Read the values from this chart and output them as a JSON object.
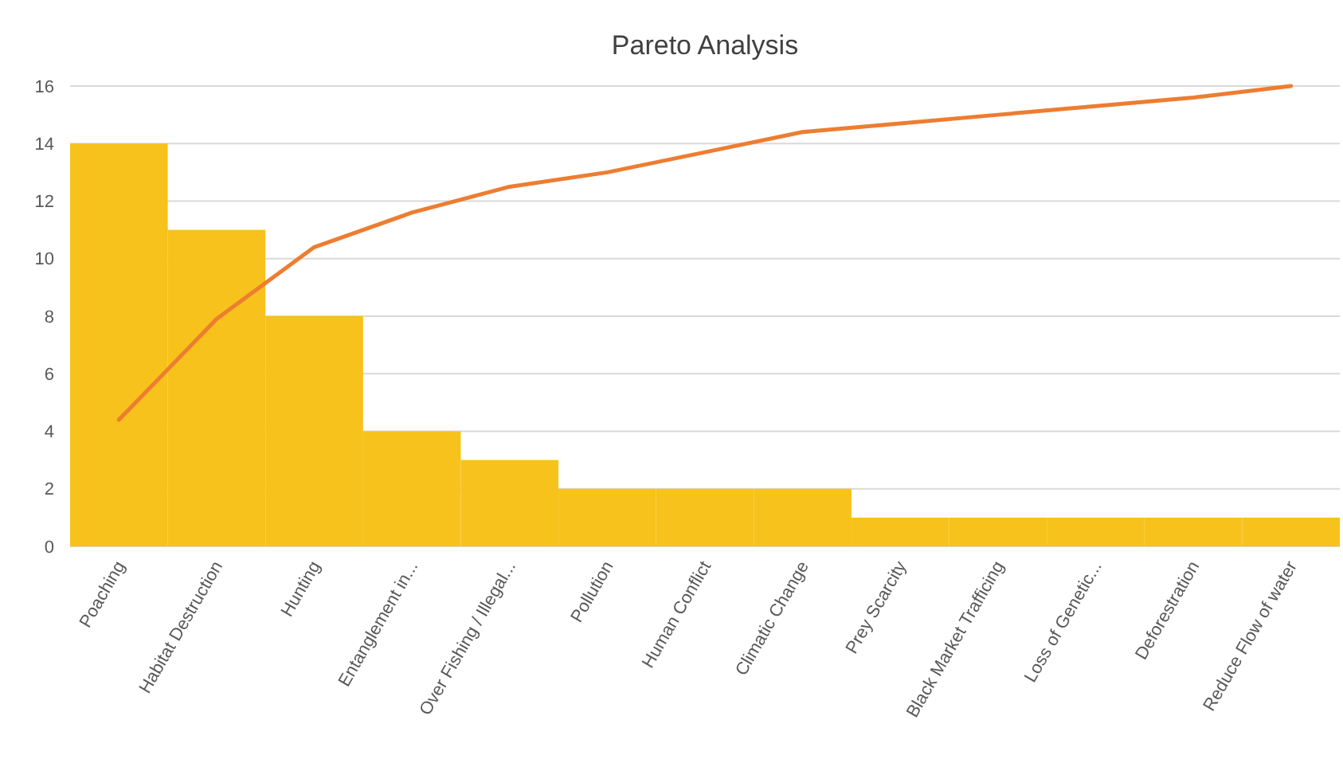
{
  "chart_data": {
    "type": "bar",
    "title": "Pareto Analysis",
    "categories": [
      "Poaching",
      "Habitat Destruction",
      "Hunting",
      "Entanglement in...",
      "Over Fishing / Illegal...",
      "Pollution",
      "Human Conflict",
      "Climatic Change",
      "Prey Scarcity",
      "Black Market Trafficing",
      "Loss of Genetic...",
      "Deforestration",
      "Reduce Flow of water"
    ],
    "series": [
      {
        "color": "#f7c21b",
        "values": [
          14,
          11,
          8,
          4,
          3,
          2,
          2,
          2,
          1,
          1,
          1,
          1,
          1
        ]
      },
      {
        "type": "line",
        "color": "#ed7d31",
        "values": [
          4.4,
          7.9,
          10.4,
          11.6,
          12.5,
          13.0,
          13.7,
          14.4,
          14.7,
          15.0,
          15.3,
          15.6,
          16.0
        ]
      }
    ],
    "ylim": [
      0,
      16
    ],
    "yticks": [
      0,
      2,
      4,
      6,
      8,
      10,
      12,
      14,
      16
    ],
    "grid": "y"
  }
}
